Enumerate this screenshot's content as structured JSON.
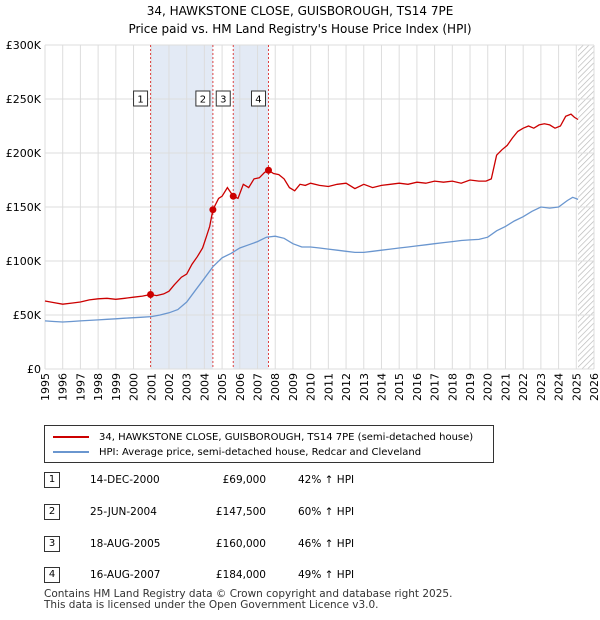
{
  "header": {
    "title": "34, HAWKSTONE CLOSE, GUISBOROUGH, TS14 7PE",
    "subtitle": "Price paid vs. HM Land Registry's House Price Index (HPI)"
  },
  "colors": {
    "property": "#cc0000",
    "hpi": "#6a96cf",
    "shade": "#e3eaf5",
    "vline": "#d44",
    "grid": "#dddddd",
    "hatch": "#bbbbbb"
  },
  "legend": {
    "property_label": "34, HAWKSTONE CLOSE, GUISBOROUGH, TS14 7PE (semi-detached house)",
    "hpi_label": "HPI: Average price, semi-detached house, Redcar and Cleveland"
  },
  "sales": [
    {
      "num": "1",
      "date": "14-DEC-2000",
      "price": "£69,000",
      "hpi": "42% ↑ HPI"
    },
    {
      "num": "2",
      "date": "25-JUN-2004",
      "price": "£147,500",
      "hpi": "60% ↑ HPI"
    },
    {
      "num": "3",
      "date": "18-AUG-2005",
      "price": "£160,000",
      "hpi": "46% ↑ HPI"
    },
    {
      "num": "4",
      "date": "16-AUG-2007",
      "price": "£184,000",
      "hpi": "49% ↑ HPI"
    }
  ],
  "footer": {
    "line1": "Contains HM Land Registry data © Crown copyright and database right 2025.",
    "line2": "This data is licensed under the Open Government Licence v3.0."
  },
  "chart_data": {
    "type": "line",
    "x_range": [
      1995,
      2026
    ],
    "y_range": [
      0,
      300000
    ],
    "y_ticks": [
      0,
      50000,
      100000,
      150000,
      200000,
      250000,
      300000
    ],
    "y_tick_labels": [
      "£0",
      "£50K",
      "£100K",
      "£150K",
      "£200K",
      "£250K",
      "£300K"
    ],
    "x_ticks": [
      1995,
      1996,
      1997,
      1998,
      1999,
      2000,
      2001,
      2002,
      2003,
      2004,
      2005,
      2006,
      2007,
      2008,
      2009,
      2010,
      2011,
      2012,
      2013,
      2014,
      2015,
      2016,
      2017,
      2018,
      2019,
      2020,
      2021,
      2022,
      2023,
      2024,
      2025,
      2026
    ],
    "shaded_periods": [
      [
        2000.96,
        2004.48
      ],
      [
        2005.63,
        2007.62
      ]
    ],
    "future_hatch_from": 2025.1,
    "sale_markers": [
      {
        "label": "1",
        "x": 2000.96,
        "y": 69000
      },
      {
        "label": "2",
        "x": 2004.48,
        "y": 147500
      },
      {
        "label": "3",
        "x": 2005.63,
        "y": 160000
      },
      {
        "label": "4",
        "x": 2007.62,
        "y": 184000
      }
    ],
    "series": [
      {
        "name": "34, HAWKSTONE CLOSE, GUISBOROUGH, TS14 7PE (semi-detached house)",
        "x": [
          1995,
          1995.5,
          1996,
          1996.5,
          1997,
          1997.5,
          1998,
          1998.5,
          1999,
          1999.5,
          2000,
          2000.5,
          2000.96,
          2001.3,
          2001.7,
          2002,
          2002.3,
          2002.7,
          2003,
          2003.3,
          2003.6,
          2003.9,
          2004.1,
          2004.3,
          2004.48,
          2004.8,
          2005,
          2005.3,
          2005.63,
          2005.9,
          2006.2,
          2006.5,
          2006.8,
          2007.1,
          2007.4,
          2007.62,
          2007.9,
          2008.2,
          2008.5,
          2008.8,
          2009.1,
          2009.4,
          2009.7,
          2010,
          2010.5,
          2011,
          2011.5,
          2012,
          2012.5,
          2013,
          2013.5,
          2014,
          2014.5,
          2015,
          2015.5,
          2016,
          2016.5,
          2017,
          2017.5,
          2018,
          2018.5,
          2019,
          2019.5,
          2019.9,
          2020.2,
          2020.5,
          2020.8,
          2021.1,
          2021.4,
          2021.7,
          2022,
          2022.3,
          2022.6,
          2022.9,
          2023.2,
          2023.5,
          2023.8,
          2024.1,
          2024.4,
          2024.7,
          2024.9,
          2025.1
        ],
        "y": [
          63000,
          61500,
          60000,
          61000,
          62000,
          64000,
          65000,
          65500,
          64500,
          65500,
          66500,
          67500,
          69000,
          68000,
          69500,
          72000,
          78000,
          85000,
          88000,
          97000,
          104000,
          112000,
          122000,
          132000,
          147500,
          158000,
          160000,
          168000,
          160000,
          158000,
          171000,
          168000,
          176000,
          177000,
          182000,
          184000,
          181000,
          180000,
          176000,
          168000,
          165000,
          171000,
          170000,
          172000,
          170000,
          169000,
          171000,
          172000,
          167000,
          171000,
          168000,
          170000,
          171000,
          172000,
          171000,
          173000,
          172000,
          174000,
          173000,
          174000,
          172000,
          175000,
          174000,
          174000,
          176000,
          198000,
          203000,
          207000,
          214000,
          220000,
          223000,
          225000,
          223000,
          226000,
          227000,
          226000,
          223000,
          225000,
          234000,
          236000,
          233000,
          231000
        ]
      },
      {
        "name": "HPI: Average price, semi-detached house, Redcar and Cleveland",
        "x": [
          1995,
          1995.5,
          1996,
          1996.5,
          1997,
          1997.5,
          1998,
          1998.5,
          1999,
          1999.5,
          2000,
          2000.5,
          2001,
          2001.5,
          2002,
          2002.5,
          2003,
          2003.5,
          2004,
          2004.5,
          2005,
          2005.5,
          2006,
          2006.5,
          2007,
          2007.5,
          2008,
          2008.5,
          2009,
          2009.5,
          2010,
          2010.5,
          2011,
          2011.5,
          2012,
          2012.5,
          2013,
          2013.5,
          2014,
          2014.5,
          2015,
          2015.5,
          2016,
          2016.5,
          2017,
          2017.5,
          2018,
          2018.5,
          2019,
          2019.5,
          2020,
          2020.5,
          2021,
          2021.5,
          2022,
          2022.5,
          2023,
          2023.5,
          2024,
          2024.5,
          2024.8,
          2025.1
        ],
        "y": [
          44500,
          44000,
          43500,
          44000,
          44500,
          45000,
          45500,
          46000,
          46500,
          47000,
          47500,
          48000,
          48500,
          50000,
          52000,
          55000,
          62000,
          73000,
          84000,
          95000,
          103000,
          107000,
          112000,
          115000,
          118000,
          122000,
          123000,
          121000,
          116000,
          113000,
          113000,
          112000,
          111000,
          110000,
          109000,
          108000,
          108000,
          109000,
          110000,
          111000,
          112000,
          113000,
          114000,
          115000,
          116000,
          117000,
          118000,
          119000,
          119500,
          120000,
          122000,
          128000,
          132000,
          137000,
          141000,
          146000,
          150000,
          149000,
          150000,
          156000,
          159000,
          157000
        ]
      }
    ]
  }
}
